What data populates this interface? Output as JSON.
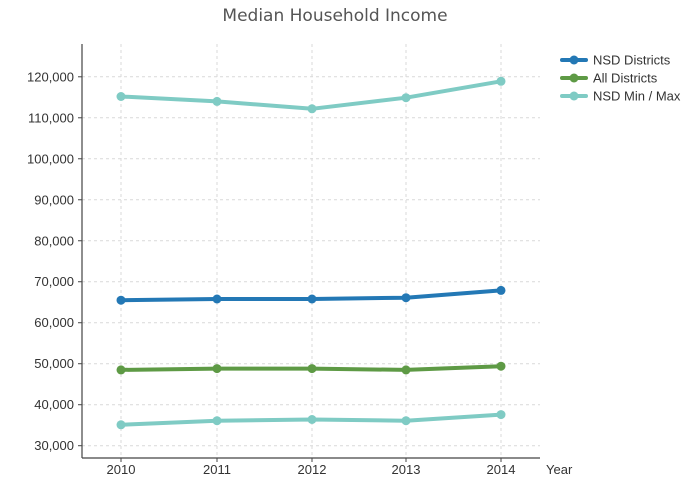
{
  "chart_data": {
    "type": "line",
    "title": "Median Household Income",
    "xlabel": "Year",
    "ylabel": "",
    "categories": [
      "2010",
      "2011",
      "2012",
      "2013",
      "2014"
    ],
    "ylim": [
      27000,
      128000
    ],
    "yticks": [
      30000,
      40000,
      50000,
      60000,
      70000,
      80000,
      90000,
      100000,
      110000,
      120000
    ],
    "ytick_labels": [
      "30,000",
      "40,000",
      "50,000",
      "60,000",
      "70,000",
      "80,000",
      "90,000",
      "100,000",
      "110,000",
      "120,000"
    ],
    "grid": true,
    "legend_position": "top-right",
    "series": [
      {
        "name": "NSD Districts",
        "color": "#2378b5",
        "values": [
          65500,
          65800,
          65800,
          66100,
          67900
        ],
        "legend": true
      },
      {
        "name": "All Districts",
        "color": "#5e9a45",
        "values": [
          48500,
          48800,
          48800,
          48500,
          49400
        ],
        "legend": true
      },
      {
        "name": "NSD Min / Max",
        "color": "#7fcbc4",
        "values": [
          115200,
          114000,
          112200,
          114900,
          118900
        ],
        "legend": true
      },
      {
        "name": "",
        "color": "#7fcbc4",
        "values": [
          35100,
          36100,
          36400,
          36100,
          37600
        ],
        "legend": false
      }
    ]
  }
}
